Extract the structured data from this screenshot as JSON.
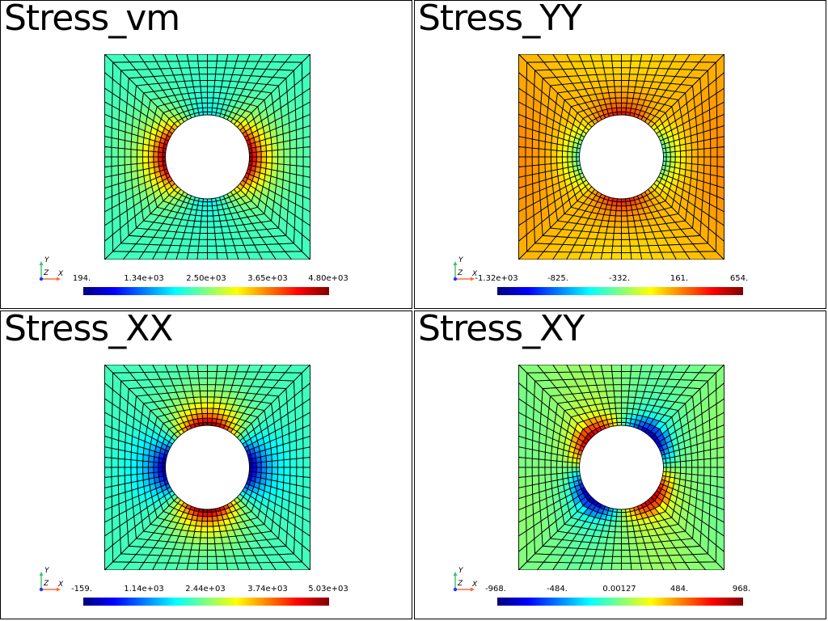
{
  "colors": {
    "jet": [
      "#00007f",
      "#0000ff",
      "#007fff",
      "#00ffff",
      "#7fff7f",
      "#ffff00",
      "#ff7f00",
      "#ff0000",
      "#7f0000"
    ],
    "mesh_line": "#000000",
    "axis_x": "#ff6a3a",
    "axis_y": "#3fbf6f",
    "axis_z": "#1a3aff"
  },
  "panels": [
    {
      "title": "Stress_vm",
      "axes": {
        "x": "X",
        "y": "Y",
        "z": "Z"
      },
      "colorbar_ticks": [
        "194.",
        "1.34e+03",
        "2.50e+03",
        "3.65e+03",
        "4.80e+03"
      ],
      "field": {
        "kind": "vm",
        "range": [
          194,
          4800
        ]
      }
    },
    {
      "title": "Stress_YY",
      "axes": {
        "x": "X",
        "y": "Y",
        "z": "Z"
      },
      "colorbar_ticks": [
        "-1.32e+03",
        "-825.",
        "-332.",
        "161.",
        "654."
      ],
      "field": {
        "kind": "yy",
        "range": [
          -1320,
          654
        ]
      }
    },
    {
      "title": "Stress_XX",
      "axes": {
        "x": "X",
        "y": "Y",
        "z": "Z"
      },
      "colorbar_ticks": [
        "-159.",
        "1.14e+03",
        "2.44e+03",
        "3.74e+03",
        "5.03e+03"
      ],
      "field": {
        "kind": "xx",
        "range": [
          -159,
          5030
        ]
      }
    },
    {
      "title": "Stress_XY",
      "axes": {
        "x": "X",
        "y": "Y",
        "z": "Z"
      },
      "colorbar_ticks": [
        "-968.",
        "-484.",
        "0.00127",
        "484.",
        "968."
      ],
      "field": {
        "kind": "xy",
        "range": [
          -968,
          968
        ]
      }
    }
  ]
}
